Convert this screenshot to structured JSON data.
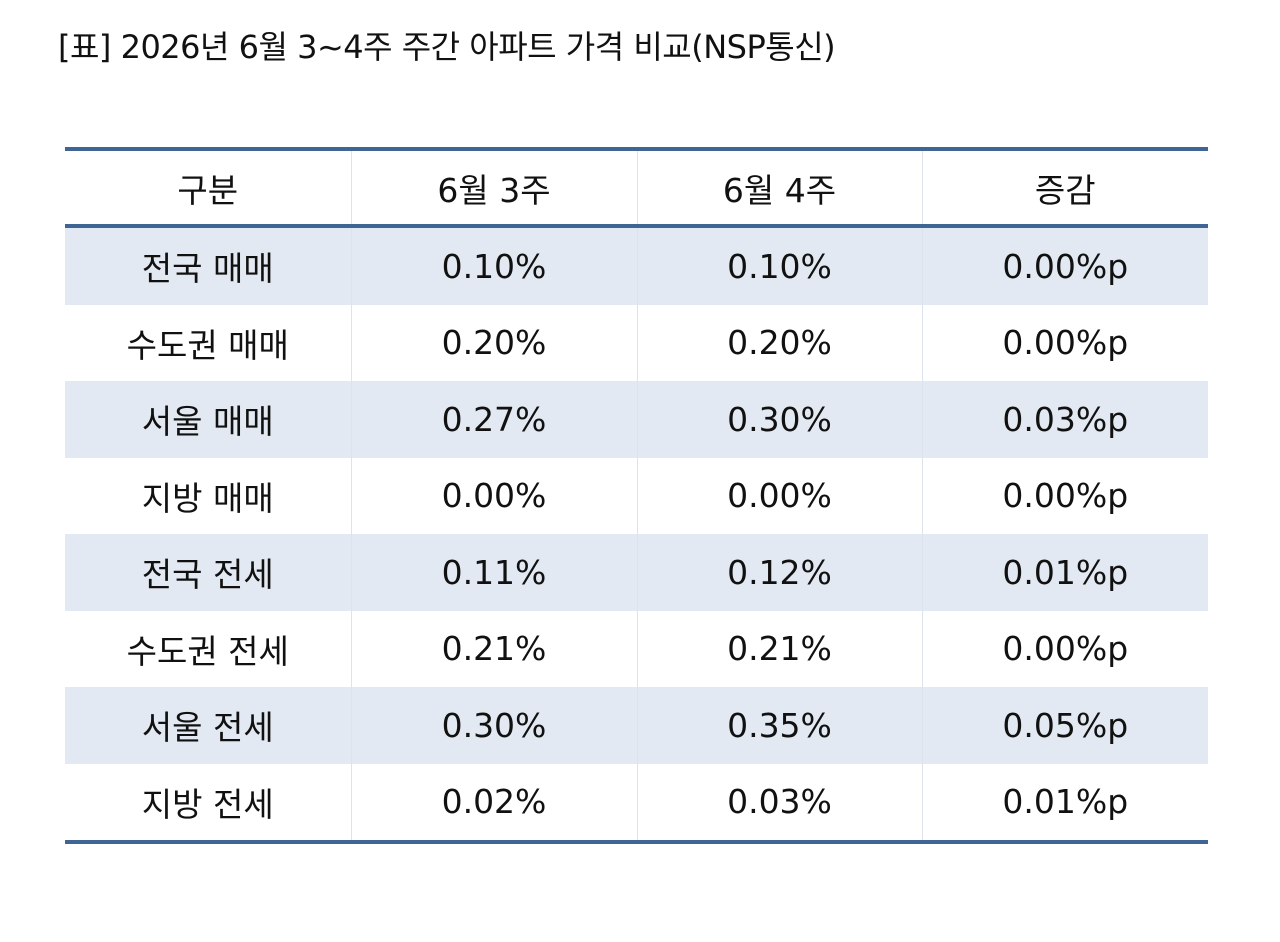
{
  "header": {
    "title": "[표] 2026년 6월 3~4주 주간 아파트 가격 비교(NSP통신)"
  },
  "table": {
    "columns": [
      "구분",
      "6월 3주",
      "6월 4주",
      "증감"
    ],
    "rows": [
      [
        "전국 매매",
        "0.10%",
        "0.10%",
        "0.00%p"
      ],
      [
        "수도권 매매",
        "0.20%",
        "0.20%",
        "0.00%p"
      ],
      [
        "서울 매매",
        "0.27%",
        "0.30%",
        "0.03%p"
      ],
      [
        "지방 매매",
        "0.00%",
        "0.00%",
        "0.00%p"
      ],
      [
        "전국 전세",
        "0.11%",
        "0.12%",
        "0.01%p"
      ],
      [
        "수도권 전세",
        "0.21%",
        "0.21%",
        "0.00%p"
      ],
      [
        "서울 전세",
        "0.30%",
        "0.35%",
        "0.05%p"
      ],
      [
        "지방 전세",
        "0.02%",
        "0.03%",
        "0.01%p"
      ]
    ]
  }
}
